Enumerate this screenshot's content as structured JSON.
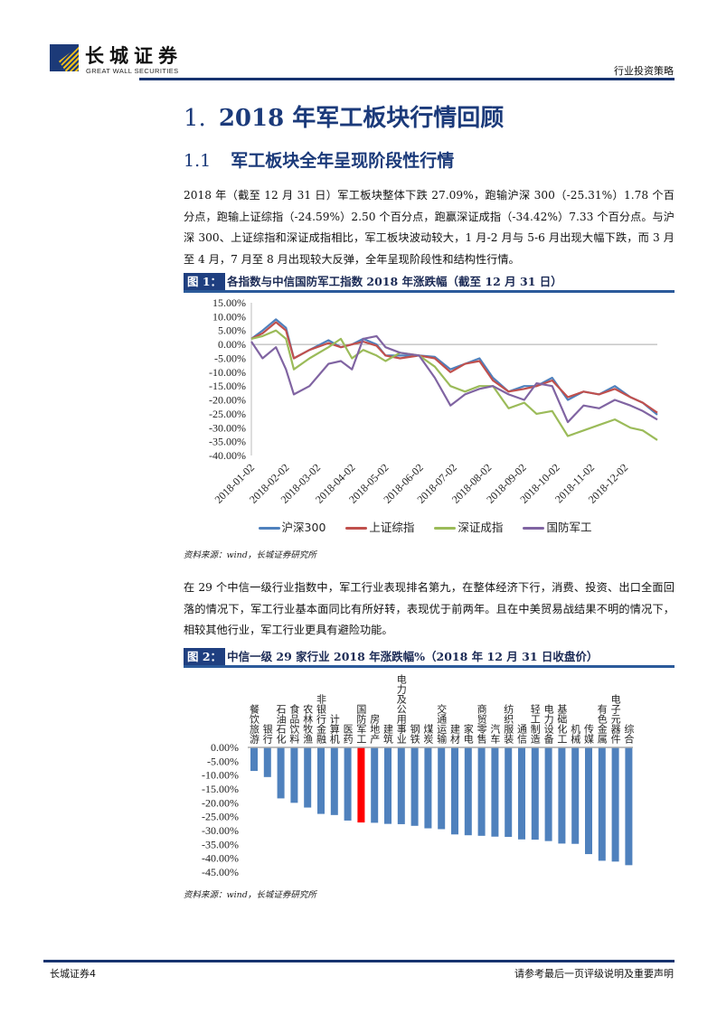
{
  "header": {
    "logo_cn": "长城证券",
    "logo_en": "GREAT WALL SECURITIES",
    "report_type": "行业投资策略"
  },
  "section": {
    "number": "1.",
    "title": "2018 年军工板块行情回顾"
  },
  "subsection": {
    "number": "1.1",
    "title": "军工板块全年呈现阶段性行情"
  },
  "paragraphs": [
    "2018 年（截至 12 月 31 日）军工板块整体下跌 27.09%，跑输沪深 300（-25.31%）1.78 个百分点，跑输上证综指（-24.59%）2.50 个百分点，跑赢深证成指（-34.42%）7.33 个百分点。与沪深 300、上证综指和深证成指相比，军工板块波动较大，1 月-2 月与 5-6 月出现大幅下跌，而 3 月至 4 月，7 月至 8 月出现较大反弹，全年呈现阶段性和结构性行情。",
    "在 29 个中信一级行业指数中，军工行业表现排名第九，在整体经济下行，消费、投资、出口全面回落的情况下，军工行业基本面同比有所好转，表现优于前两年。且在中美贸易战结果不明的情况下，相较其他行业，军工行业更具有避险功能。"
  ],
  "figures": [
    {
      "tag": "图 1：",
      "title": "各指数与中信国防军工指数 2018 年涨跌幅（截至 12 月 31 日）",
      "source": "资料来源：wind，长城证券研究所"
    },
    {
      "tag": "图 2：",
      "title": "中信一级 29 家行业 2018 年涨跌幅%（2018 年 12 月 31 日收盘价）",
      "source": "资料来源：wind，长城证券研究所"
    }
  ],
  "footer": {
    "left": "长城证券4",
    "right": "请参考最后一页评级说明及重要声明"
  },
  "chart_data": [
    {
      "type": "line",
      "ylim": [
        -40,
        15
      ],
      "yticks": [
        "15.00%",
        "10.00%",
        "5.00%",
        "0.00%",
        "-5.00%",
        "-10.00%",
        "-15.00%",
        "-20.00%",
        "-25.00%",
        "-30.00%",
        "-35.00%",
        "-40.00%"
      ],
      "xticks": [
        "2018-01-02",
        "2018-02-02",
        "2018-03-02",
        "2018-04-02",
        "2018-05-02",
        "2018-06-02",
        "2018-07-02",
        "2018-08-02",
        "2018-09-02",
        "2018-10-02",
        "2018-11-02",
        "2018-12-02"
      ],
      "xrange": [
        "2018-01-02",
        "2018-12-31"
      ],
      "legend": "bottom",
      "x": [
        "2018-01-02",
        "2018-01-12",
        "2018-01-24",
        "2018-02-02",
        "2018-02-09",
        "2018-02-23",
        "2018-03-12",
        "2018-03-23",
        "2018-04-02",
        "2018-04-12",
        "2018-04-24",
        "2018-05-02",
        "2018-05-15",
        "2018-06-01",
        "2018-06-15",
        "2018-06-29",
        "2018-07-12",
        "2018-07-25",
        "2018-08-06",
        "2018-08-20",
        "2018-09-03",
        "2018-09-14",
        "2018-09-28",
        "2018-10-12",
        "2018-10-26",
        "2018-11-09",
        "2018-11-23",
        "2018-12-07",
        "2018-12-18",
        "2018-12-31"
      ],
      "series": [
        {
          "name": "沪深300",
          "color": "#4f81bd",
          "values": [
            2,
            5,
            9,
            6,
            -5,
            -2,
            1.5,
            -1,
            0,
            2,
            0,
            -4,
            -4,
            -4,
            -4.5,
            -9,
            -7,
            -5,
            -12,
            -17,
            -15,
            -15,
            -12,
            -20,
            -17,
            -18,
            -15,
            -19,
            -21,
            -25.31
          ]
        },
        {
          "name": "上证综指",
          "color": "#c0504d",
          "values": [
            2,
            4,
            8,
            5,
            -5,
            -2,
            0.5,
            -1,
            0,
            1,
            -0.5,
            -4,
            -5,
            -4,
            -5,
            -10,
            -7,
            -6,
            -13,
            -17,
            -16,
            -15,
            -13,
            -19,
            -17,
            -18,
            -16,
            -19,
            -21,
            -24.59
          ]
        },
        {
          "name": "深证成指",
          "color": "#9bbb59",
          "values": [
            2,
            3,
            5,
            2,
            -9,
            -5,
            -1,
            2,
            -5,
            -2,
            -4,
            -6,
            -3,
            -4,
            -8,
            -15,
            -17,
            -15,
            -15,
            -23,
            -21,
            -25,
            -24,
            -33,
            -31,
            -29,
            -27,
            -30,
            -31,
            -34.42
          ]
        },
        {
          "name": "国防军工",
          "color": "#8064a2",
          "values": [
            1,
            -5,
            -1,
            -9,
            -18,
            -15,
            -7,
            -6,
            -9,
            2,
            3,
            -1,
            -3,
            -4,
            -12,
            -22,
            -18,
            -16,
            -15,
            -18,
            -20,
            -14,
            -15,
            -28,
            -22,
            -23,
            -20,
            -22,
            -24,
            -27.09
          ]
        }
      ]
    },
    {
      "type": "bar",
      "ylim": [
        -45,
        0
      ],
      "yticks": [
        "0.00%",
        "-5.00%",
        "-10.00%",
        "-15.00%",
        "-20.00%",
        "-25.00%",
        "-30.00%",
        "-35.00%",
        "-40.00%",
        "-45.00%"
      ],
      "categories": [
        "餐饮旅游",
        "银行",
        "石油石化",
        "食品饮料",
        "农林牧渔",
        "非银行金融",
        "计算机",
        "医药",
        "国防军工",
        "房地产",
        "建筑",
        "电力及公用事业",
        "钢铁",
        "煤炭",
        "交通运输",
        "建材",
        "家电",
        "商贸零售",
        "汽车",
        "纺织服装",
        "通信",
        "轻工制造",
        "电力设备",
        "基础化工",
        "机械",
        "传媒",
        "有色金属",
        "电子元器件",
        "综合"
      ],
      "values": [
        -8.5,
        -10.7,
        -18.4,
        -20.0,
        -21.7,
        -24.0,
        -24.4,
        -26.4,
        -27.09,
        -27.2,
        -27.6,
        -27.7,
        -28.3,
        -29.2,
        -29.5,
        -31.4,
        -31.7,
        -31.9,
        -32.2,
        -32.3,
        -33.2,
        -33.3,
        -33.8,
        -34.7,
        -34.8,
        -38.5,
        -40.9,
        -41.2,
        -42.5
      ],
      "bar_color": "#4f81bd",
      "highlight_category": "国防军工",
      "highlight_color": "#ff0000"
    }
  ]
}
